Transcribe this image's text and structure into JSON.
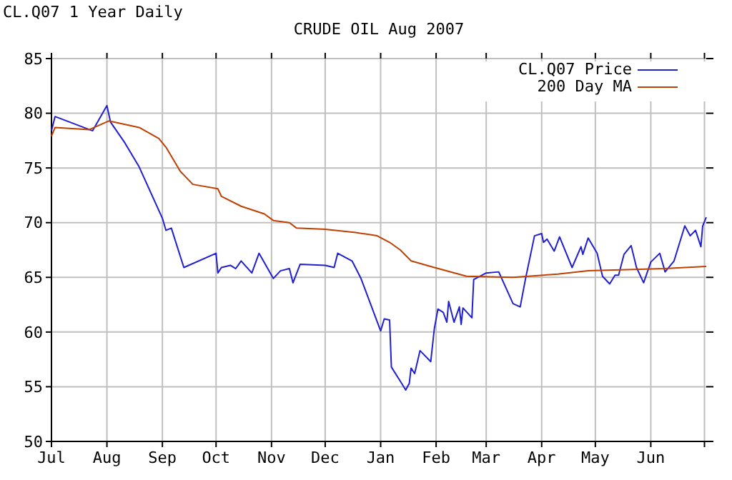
{
  "chart_data": {
    "type": "line",
    "title": "CRUDE OIL Aug 2007",
    "subtitle": "CL.Q07 1 Year Daily",
    "x": [
      "2006-07-01",
      "2006-07-03",
      "2006-07-24",
      "2006-08-01",
      "2006-08-03",
      "2006-08-11",
      "2006-08-19",
      "2006-09-01",
      "2006-09-03",
      "2006-09-06",
      "2006-09-13",
      "2006-10-01",
      "2006-10-02",
      "2006-10-04",
      "2006-10-09",
      "2006-10-12",
      "2006-10-15",
      "2006-10-21",
      "2006-10-25",
      "2006-11-02",
      "2006-11-06",
      "2006-11-11",
      "2006-11-13",
      "2006-11-17",
      "2006-12-01",
      "2006-12-06",
      "2006-12-08",
      "2006-12-16",
      "2006-12-21",
      "2007-01-01",
      "2007-01-03",
      "2007-01-06",
      "2007-01-07",
      "2007-01-12",
      "2007-01-15",
      "2007-01-17",
      "2007-01-18",
      "2007-01-20",
      "2007-01-23",
      "2007-01-29",
      "2007-01-31",
      "2007-02-02",
      "2007-02-05",
      "2007-02-07",
      "2007-02-08",
      "2007-02-11",
      "2007-02-14",
      "2007-02-15",
      "2007-02-16",
      "2007-02-21",
      "2007-02-22",
      "2007-03-01",
      "2007-03-08",
      "2007-03-16",
      "2007-03-20",
      "2007-03-23",
      "2007-03-28",
      "2007-04-01",
      "2007-04-02",
      "2007-04-04",
      "2007-04-08",
      "2007-04-11",
      "2007-04-18",
      "2007-04-23",
      "2007-04-24",
      "2007-04-27",
      "2007-05-02",
      "2007-05-05",
      "2007-05-09",
      "2007-05-12",
      "2007-05-14",
      "2007-05-17",
      "2007-05-21",
      "2007-05-24",
      "2007-05-28",
      "2007-06-01",
      "2007-06-06",
      "2007-06-09",
      "2007-06-14",
      "2007-06-20",
      "2007-06-23",
      "2007-06-26",
      "2007-06-29",
      "2007-06-30",
      "2007-07-02"
    ],
    "series": [
      {
        "name": "CL.Q07 Price",
        "color": "#2020d0",
        "values": [
          78.4,
          79.7,
          78.4,
          80.7,
          79.2,
          77.3,
          75.1,
          70.4,
          69.3,
          69.5,
          65.9,
          67.2,
          65.4,
          65.9,
          66.1,
          65.8,
          66.5,
          65.4,
          67.2,
          64.9,
          65.6,
          65.8,
          64.5,
          66.2,
          66.1,
          65.9,
          67.2,
          66.5,
          64.9,
          60.1,
          61.2,
          61.1,
          56.8,
          55.5,
          54.7,
          55.3,
          56.7,
          56.2,
          58.3,
          57.3,
          60.3,
          62.1,
          61.8,
          60.9,
          62.8,
          60.9,
          62.3,
          60.7,
          62.2,
          61.3,
          64.8,
          65.4,
          65.5,
          62.6,
          62.3,
          64.9,
          68.8,
          69.0,
          68.2,
          68.5,
          67.4,
          68.7,
          65.9,
          67.8,
          67.1,
          68.6,
          67.2,
          65.1,
          64.4,
          65.2,
          65.2,
          67.1,
          67.9,
          65.9,
          64.5,
          66.4,
          67.2,
          65.5,
          66.5,
          69.7,
          68.8,
          69.3,
          67.8,
          69.7,
          70.5
        ]
      },
      {
        "name": "200 Day MA",
        "color": "#c04000",
        "x": [
          "2006-07-01",
          "2006-07-03",
          "2006-07-22",
          "2006-08-02",
          "2006-08-19",
          "2006-08-30",
          "2006-09-03",
          "2006-09-11",
          "2006-09-18",
          "2006-10-02",
          "2006-10-04",
          "2006-10-15",
          "2006-10-28",
          "2006-11-02",
          "2006-11-11",
          "2006-11-15",
          "2006-12-01",
          "2006-12-18",
          "2006-12-30",
          "2007-01-06",
          "2007-01-12",
          "2007-01-18",
          "2007-01-31",
          "2007-02-18",
          "2007-03-16",
          "2007-04-10",
          "2007-04-27",
          "2007-06-09",
          "2007-06-20",
          "2007-07-02"
        ],
        "values": [
          77.9,
          78.7,
          78.5,
          79.3,
          78.7,
          77.7,
          76.9,
          74.7,
          73.5,
          73.1,
          72.4,
          71.5,
          70.8,
          70.2,
          70.0,
          69.5,
          69.4,
          69.1,
          68.8,
          68.2,
          67.5,
          66.5,
          65.9,
          65.1,
          65.0,
          65.3,
          65.6,
          65.8,
          65.9,
          66.0
        ]
      }
    ],
    "xlim": [
      "2006-07-01",
      "2007-07-02"
    ],
    "xticks": [
      {
        "value": "2006-07-01",
        "label": "Jul"
      },
      {
        "value": "2006-08-01",
        "label": "Aug"
      },
      {
        "value": "2006-09-01",
        "label": "Sep"
      },
      {
        "value": "2006-10-01",
        "label": "Oct"
      },
      {
        "value": "2006-11-01",
        "label": "Nov"
      },
      {
        "value": "2006-12-01",
        "label": "Dec"
      },
      {
        "value": "2007-01-01",
        "label": "Jan"
      },
      {
        "value": "2007-02-01",
        "label": "Feb"
      },
      {
        "value": "2007-03-01",
        "label": "Mar"
      },
      {
        "value": "2007-04-01",
        "label": "Apr"
      },
      {
        "value": "2007-05-01",
        "label": "May"
      },
      {
        "value": "2007-06-01",
        "label": "Jun"
      },
      {
        "value": "2007-07-01",
        "label": null
      }
    ],
    "ylim": [
      50,
      85
    ],
    "yticks": [
      50,
      55,
      60,
      65,
      70,
      75,
      80,
      85
    ],
    "grid": true,
    "legend": "top right",
    "marker": "none",
    "line_style": "solid"
  }
}
